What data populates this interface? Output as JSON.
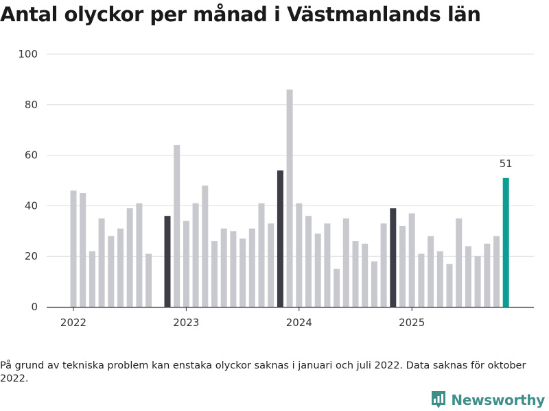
{
  "chart_data": {
    "type": "bar",
    "title": "Antal olyckor per månad i Västmanlands län",
    "xlabel": "",
    "ylabel": "",
    "ylim": [
      0,
      100
    ],
    "yticks": [
      0,
      20,
      40,
      60,
      80,
      100
    ],
    "ytick_labels": [
      "0",
      "20",
      "40",
      "60",
      "80",
      "100"
    ],
    "xtick_labels": [
      "2022",
      "2023",
      "2024",
      "2025"
    ],
    "categories": [
      "2022-01",
      "2022-02",
      "2022-03",
      "2022-04",
      "2022-05",
      "2022-06",
      "2022-07",
      "2022-08",
      "2022-09",
      "2022-10",
      "2022-11",
      "2022-12",
      "2023-01",
      "2023-02",
      "2023-03",
      "2023-04",
      "2023-05",
      "2023-06",
      "2023-07",
      "2023-08",
      "2023-09",
      "2023-10",
      "2023-11",
      "2023-12",
      "2024-01",
      "2024-02",
      "2024-03",
      "2024-04",
      "2024-05",
      "2024-06",
      "2024-07",
      "2024-08",
      "2024-09",
      "2024-10",
      "2024-11",
      "2024-12",
      "2025-01",
      "2025-02",
      "2025-03",
      "2025-04",
      "2025-05",
      "2025-06",
      "2025-07",
      "2025-08",
      "2025-09",
      "2025-10",
      "2025-11"
    ],
    "values": [
      46,
      45,
      22,
      35,
      28,
      31,
      39,
      41,
      21,
      null,
      36,
      64,
      34,
      41,
      48,
      26,
      31,
      30,
      27,
      31,
      41,
      33,
      54,
      86,
      41,
      36,
      29,
      33,
      15,
      35,
      26,
      25,
      18,
      33,
      39,
      32,
      37,
      21,
      28,
      22,
      17,
      35,
      24,
      20,
      25,
      28,
      51
    ],
    "highlighted_months": [
      "2022-11",
      "2023-11",
      "2024-11"
    ],
    "latest_month": "2025-11",
    "annotations": [
      {
        "category": "2025-11",
        "text": "51"
      }
    ],
    "grid": true,
    "legend": "none"
  },
  "colors": {
    "bar_default": "#c8c8cf",
    "bar_highlight": "#3d3d48",
    "bar_latest": "#0d9d92",
    "grid": "#dddddd",
    "axis": "#333333",
    "brand": "#3f8e8a"
  },
  "footnote": "På grund av tekniska problem kan enstaka olyckor saknas i januari och juli 2022. Data saknas för oktober 2022.",
  "brand": {
    "name": "Newsworthy",
    "icon": "newsworthy-logo-icon"
  }
}
